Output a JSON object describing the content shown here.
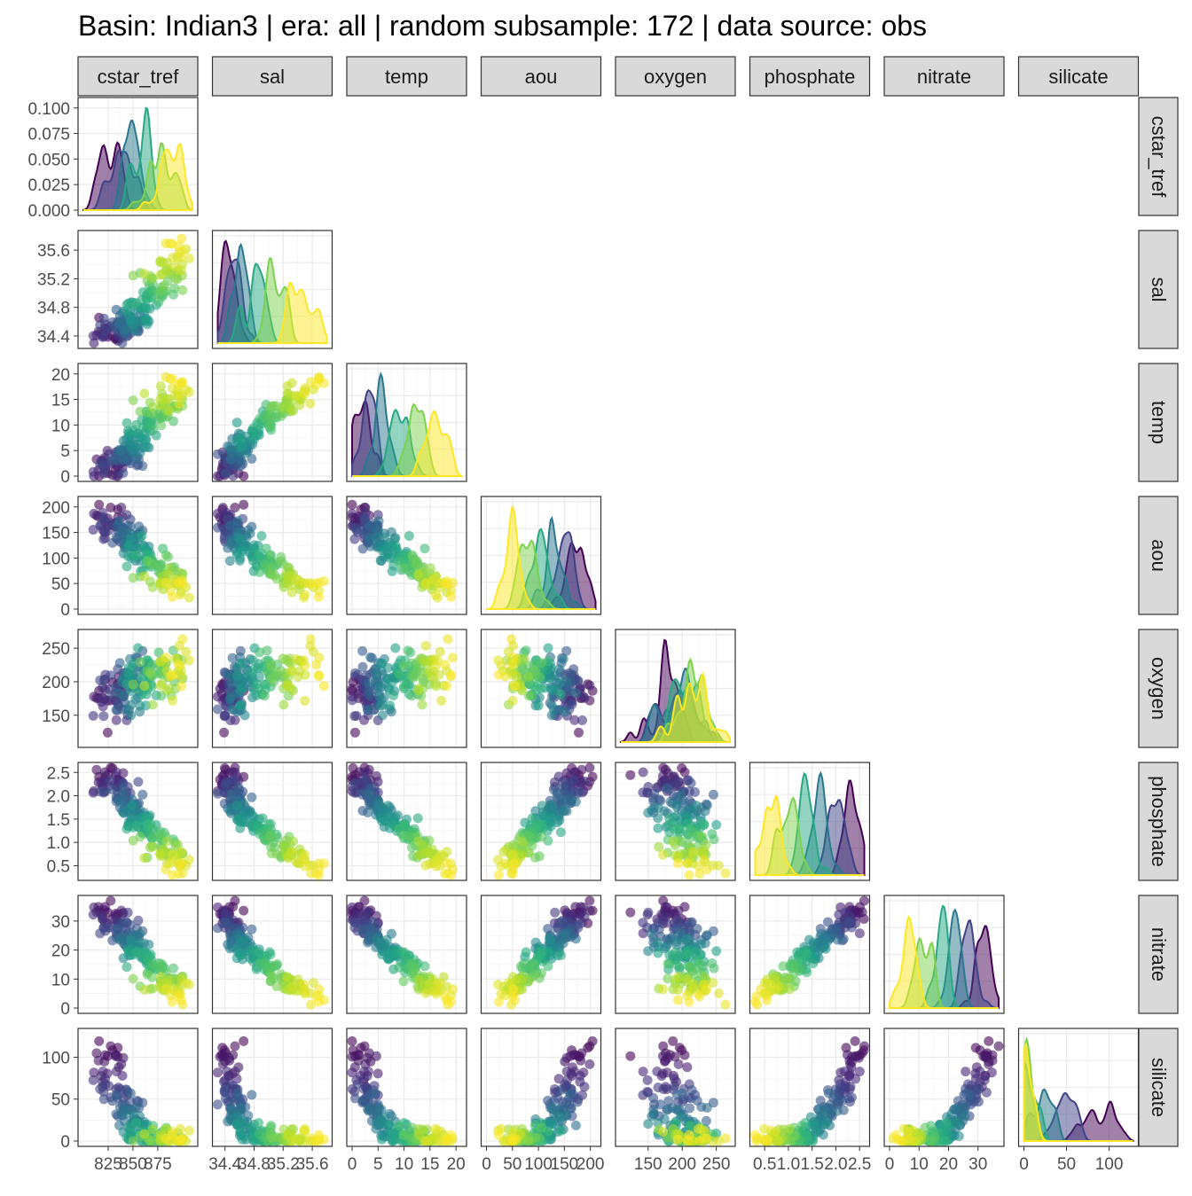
{
  "title": "Basin: Indian3 | era: all | random subsample: 172 | data source: obs",
  "chart_data": {
    "type": "scatter-matrix",
    "variables": [
      "cstar_tref",
      "sal",
      "temp",
      "aou",
      "oxygen",
      "phosphate",
      "nitrate",
      "silicate"
    ],
    "ranges": {
      "cstar_tref": [
        800,
        910
      ],
      "sal": [
        34.3,
        35.8
      ],
      "temp": [
        0,
        21
      ],
      "aou": [
        0,
        210
      ],
      "oxygen": [
        110,
        270
      ],
      "phosphate": [
        0.3,
        2.6
      ],
      "nitrate": [
        0,
        37
      ],
      "silicate": [
        0,
        128
      ]
    },
    "y_ticks": {
      "cstar_tref": [
        "0.000",
        "0.025",
        "0.050",
        "0.075",
        "0.100"
      ],
      "sal": [
        "34.4",
        "34.8",
        "35.2",
        "35.6"
      ],
      "temp": [
        "0",
        "5",
        "10",
        "15",
        "20"
      ],
      "aou": [
        "0",
        "50",
        "100",
        "150",
        "200"
      ],
      "oxygen": [
        "150",
        "200",
        "250"
      ],
      "phosphate": [
        "0.5",
        "1.0",
        "1.5",
        "2.0",
        "2.5"
      ],
      "nitrate": [
        "0",
        "10",
        "20",
        "30"
      ],
      "silicate": [
        "0",
        "50",
        "100"
      ]
    },
    "x_ticks": {
      "cstar_tref": [
        "825",
        "850",
        "875"
      ],
      "sal": [
        "34.4",
        "34.8",
        "35.2",
        "35.6"
      ],
      "temp": [
        "0",
        "5",
        "10",
        "15",
        "20"
      ],
      "aou": [
        "0",
        "50",
        "100",
        "150",
        "200"
      ],
      "oxygen": [
        "150",
        "200",
        "250"
      ],
      "phosphate": [
        "0.5",
        "1.0",
        "1.5",
        "2.0",
        "2.5"
      ],
      "nitrate": [
        "0",
        "10",
        "20",
        "30"
      ],
      "silicate": [
        "0",
        "50",
        "100"
      ]
    },
    "density_ymax": 0.105,
    "subsample_n": 172,
    "color_scale": "viridis",
    "grid": true,
    "legend": "none",
    "point_alpha": 0.6
  }
}
